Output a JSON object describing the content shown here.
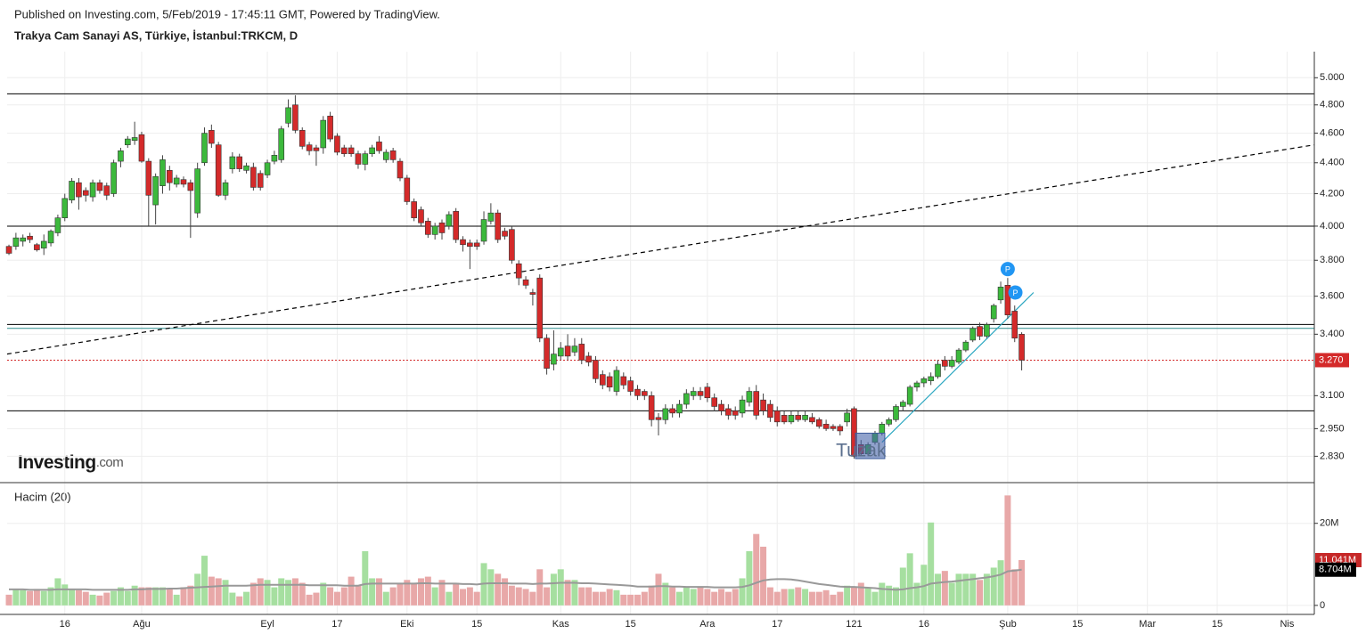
{
  "header": {
    "published": "Published on Investing.com, 5/Feb/2019 - 17:45:11 GMT, Powered by TradingView."
  },
  "logo": {
    "main": "Investing",
    "suffix": ".com"
  },
  "chart_data": [
    {
      "type": "candlestick",
      "title": "Trakya Cam Sanayi AS, Türkiye, İstanbul:TRKCM, D",
      "log_scale": true,
      "grid": true,
      "up_color": "#3cb93c",
      "down_color": "#d42a2a",
      "xlim": [
        -0.26,
        186.9
      ],
      "ylim": [
        2.72,
        5.2
      ],
      "yticks": [
        {
          "value": 2.83,
          "label": "2.830"
        },
        {
          "value": 2.95,
          "label": "2.950"
        },
        {
          "value": 3.1,
          "label": "3.100"
        },
        {
          "value": 3.4,
          "label": "3.400"
        },
        {
          "value": 3.6,
          "label": "3.600"
        },
        {
          "value": 3.8,
          "label": "3.800"
        },
        {
          "value": 4,
          "label": "4.000"
        },
        {
          "value": 4.2,
          "label": "4.200"
        },
        {
          "value": 4.4,
          "label": "4.400"
        },
        {
          "value": 4.6,
          "label": "4.600"
        },
        {
          "value": 4.8,
          "label": "4.800"
        },
        {
          "value": 5,
          "label": "5.000"
        }
      ],
      "last_price": {
        "value": 3.27,
        "label": "3.270",
        "color": "#d42a2a"
      },
      "open": [
        3.88,
        3.88,
        3.91,
        3.94,
        3.89,
        3.87,
        3.9,
        3.96,
        4.05,
        4.16,
        4.27,
        4.22,
        4.18,
        4.27,
        4.25,
        4.2,
        4.41,
        4.52,
        4.55,
        4.59,
        4.41,
        4.13,
        4.25,
        4.35,
        4.26,
        4.29,
        4.27,
        4.08,
        4.4,
        4.62,
        4.52,
        4.19,
        4.36,
        4.44,
        4.35,
        4.37,
        4.33,
        4.32,
        4.41,
        4.42,
        4.67,
        4.8,
        4.62,
        4.52,
        4.5,
        4.5,
        4.72,
        4.58,
        4.5,
        4.5,
        4.46,
        4.39,
        4.46,
        4.54,
        4.42,
        4.48,
        4.41,
        4.3,
        4.15,
        4.1,
        4.03,
        3.95,
        4.02,
        4.0,
        4.09,
        3.92,
        3.9,
        3.9,
        3.91,
        4.03,
        4.08,
        3.97,
        3.98,
        3.78,
        3.69,
        3.62,
        3.7,
        3.38,
        3.25,
        3.29,
        3.34,
        3.31,
        3.35,
        3.29,
        3.27,
        3.2,
        3.19,
        3.12,
        3.19,
        3.17,
        3.13,
        3.12,
        3.1,
        3.0,
        2.99,
        3.04,
        3.02,
        3.06,
        3.1,
        3.12,
        3.14,
        3.09,
        3.06,
        3.04,
        3.03,
        3.02,
        3.07,
        3.12,
        3.08,
        3.06,
        3.03,
        3.01,
        2.98,
        3.01,
        2.99,
        3.0,
        2.99,
        2.97,
        2.96,
        2.96,
        2.98,
        3.04,
        2.88,
        2.84,
        2.89,
        2.93,
        2.97,
        2.99,
        3.05,
        3.06,
        3.14,
        3.16,
        3.17,
        3.19,
        3.27,
        3.24,
        3.26,
        3.32,
        3.37,
        3.44,
        3.39,
        3.48,
        3.58,
        3.66,
        3.52,
        3.4
      ],
      "high": [
        3.89,
        3.96,
        3.95,
        3.96,
        3.9,
        3.95,
        3.98,
        4.07,
        4.2,
        4.3,
        4.3,
        4.24,
        4.29,
        4.29,
        4.27,
        4.42,
        4.5,
        4.58,
        4.68,
        4.61,
        4.43,
        4.33,
        4.45,
        4.38,
        4.32,
        4.31,
        4.29,
        4.4,
        4.64,
        4.66,
        4.54,
        4.29,
        4.47,
        4.46,
        4.4,
        4.4,
        4.35,
        4.42,
        4.48,
        4.65,
        4.84,
        4.87,
        4.64,
        4.54,
        4.52,
        4.72,
        4.75,
        4.6,
        4.52,
        4.52,
        4.48,
        4.48,
        4.52,
        4.58,
        4.49,
        4.5,
        4.43,
        4.32,
        4.17,
        4.12,
        4.05,
        4.02,
        4.04,
        4.09,
        4.11,
        3.94,
        3.92,
        3.92,
        4.09,
        4.14,
        4.1,
        3.99,
        4.0,
        3.8,
        3.71,
        3.64,
        3.72,
        3.4,
        3.42,
        3.36,
        3.4,
        3.38,
        3.38,
        3.31,
        3.29,
        3.22,
        3.21,
        3.24,
        3.21,
        3.19,
        3.15,
        3.13,
        3.12,
        3.02,
        3.06,
        3.06,
        3.08,
        3.13,
        3.14,
        3.14,
        3.16,
        3.11,
        3.08,
        3.06,
        3.05,
        3.1,
        3.14,
        3.15,
        3.11,
        3.08,
        3.05,
        3.03,
        3.03,
        3.03,
        3.03,
        3.02,
        3.0,
        2.99,
        2.97,
        2.97,
        3.04,
        3.05,
        2.9,
        2.89,
        2.94,
        2.98,
        3.0,
        3.06,
        3.08,
        3.15,
        3.17,
        3.19,
        3.21,
        3.27,
        3.29,
        3.29,
        3.33,
        3.37,
        3.44,
        3.46,
        3.46,
        3.56,
        3.68,
        3.7,
        3.55,
        3.41
      ],
      "low": [
        3.83,
        3.86,
        3.88,
        3.9,
        3.85,
        3.83,
        3.88,
        3.94,
        4.03,
        4.14,
        4.1,
        4.15,
        4.15,
        4.2,
        4.16,
        4.18,
        4.37,
        4.5,
        4.52,
        4.4,
        4.0,
        4.01,
        4.2,
        4.22,
        4.24,
        4.24,
        3.93,
        4.05,
        4.38,
        4.5,
        4.18,
        4.16,
        4.33,
        4.34,
        4.33,
        4.22,
        4.22,
        4.3,
        4.39,
        4.4,
        4.64,
        4.6,
        4.49,
        4.45,
        4.38,
        4.46,
        4.54,
        4.45,
        4.44,
        4.44,
        4.36,
        4.35,
        4.44,
        4.46,
        4.4,
        4.4,
        4.28,
        4.13,
        4.03,
        4.0,
        3.93,
        3.92,
        3.92,
        3.98,
        3.9,
        3.85,
        3.75,
        3.86,
        3.89,
        4.01,
        3.9,
        3.92,
        3.78,
        3.66,
        3.64,
        3.55,
        3.36,
        3.2,
        3.22,
        3.27,
        3.27,
        3.29,
        3.25,
        3.24,
        3.16,
        3.13,
        3.12,
        3.1,
        3.13,
        3.1,
        3.08,
        3.08,
        2.96,
        2.92,
        2.97,
        3.0,
        3.0,
        3.04,
        3.08,
        3.08,
        3.07,
        3.03,
        3.01,
        2.99,
        2.99,
        3.0,
        3.05,
        2.99,
        3.01,
        2.98,
        2.96,
        2.97,
        2.97,
        2.98,
        2.98,
        2.97,
        2.95,
        2.94,
        2.94,
        2.92,
        2.96,
        2.82,
        2.83,
        2.83,
        2.88,
        2.92,
        2.96,
        2.98,
        3.03,
        3.05,
        3.12,
        3.14,
        3.15,
        3.18,
        3.22,
        3.23,
        3.25,
        3.31,
        3.36,
        3.37,
        3.38,
        3.46,
        3.56,
        3.48,
        3.36,
        3.22
      ],
      "close": [
        3.84,
        3.93,
        3.93,
        3.92,
        3.86,
        3.91,
        3.97,
        4.05,
        4.17,
        4.28,
        4.18,
        4.19,
        4.27,
        4.22,
        4.19,
        4.4,
        4.48,
        4.56,
        4.57,
        4.41,
        4.19,
        4.31,
        4.42,
        4.27,
        4.3,
        4.26,
        4.22,
        4.36,
        4.6,
        4.53,
        4.19,
        4.27,
        4.44,
        4.36,
        4.38,
        4.24,
        4.24,
        4.4,
        4.45,
        4.63,
        4.78,
        4.62,
        4.51,
        4.48,
        4.48,
        4.69,
        4.56,
        4.47,
        4.46,
        4.46,
        4.39,
        4.46,
        4.5,
        4.48,
        4.47,
        4.42,
        4.3,
        4.15,
        4.05,
        4.02,
        3.95,
        4.0,
        3.96,
        4.07,
        3.92,
        3.89,
        3.88,
        3.88,
        4.04,
        4.08,
        3.92,
        3.94,
        3.8,
        3.7,
        3.66,
        3.61,
        3.38,
        3.23,
        3.3,
        3.33,
        3.29,
        3.34,
        3.27,
        3.26,
        3.18,
        3.15,
        3.14,
        3.22,
        3.15,
        3.12,
        3.1,
        3.1,
        2.99,
        2.99,
        3.04,
        3.02,
        3.06,
        3.11,
        3.12,
        3.1,
        3.09,
        3.05,
        3.03,
        3.01,
        3.01,
        3.08,
        3.12,
        3.01,
        3.03,
        3.0,
        2.98,
        2.98,
        3.01,
        2.99,
        3.01,
        2.98,
        2.96,
        2.95,
        2.95,
        2.94,
        3.02,
        2.83,
        2.84,
        2.88,
        2.93,
        2.97,
        2.99,
        3.05,
        3.07,
        3.14,
        3.16,
        3.18,
        3.19,
        3.25,
        3.24,
        3.27,
        3.32,
        3.36,
        3.43,
        3.39,
        3.45,
        3.55,
        3.65,
        3.5,
        3.38,
        3.27
      ],
      "levels": [
        {
          "value": 4.88,
          "color": "#000000"
        },
        {
          "value": 4.0,
          "color": "#000000"
        },
        {
          "value": 3.45,
          "color": "#000000"
        },
        {
          "value": 3.43,
          "color": "#2a8c8c"
        },
        {
          "value": 3.03,
          "color": "#000000"
        }
      ],
      "trendlines": [
        {
          "points": [
            [
              -0.26,
              3.3
            ],
            [
              186.9,
              4.52
            ]
          ],
          "color": "#000000",
          "style": "dashed"
        },
        {
          "points": [
            [
              125,
              2.89
            ],
            [
              146.7,
              3.62
            ]
          ],
          "color": "#2aa6c0",
          "style": "solid"
        }
      ],
      "note": {
        "text": "Tuzak",
        "x": 118.4,
        "y": 2.85,
        "box": [
          [
            121.2,
            2.93
          ],
          [
            125.4,
            2.82
          ]
        ]
      },
      "markers": [
        {
          "text": "P",
          "x": 143,
          "y": 3.75
        },
        {
          "text": "P",
          "x": 144.1,
          "y": 3.62
        }
      ]
    },
    {
      "type": "bar",
      "title": "Hacim (20)",
      "grid": true,
      "up_color": "#a6dfa0",
      "down_color": "#e8a8a8",
      "ma_color": "#999999",
      "xlim": [
        -0.26,
        186.9
      ],
      "ylim": [
        -2.2,
        29.7
      ],
      "yticks": [
        0,
        {
          "value": 20,
          "label": "20M"
        }
      ],
      "xticks": [
        {
          "value": 8,
          "label": "16"
        },
        {
          "value": 19,
          "label": "Ağu"
        },
        {
          "value": 37,
          "label": "Eyl"
        },
        {
          "value": 47,
          "label": "17"
        },
        {
          "value": 57,
          "label": "Eki"
        },
        {
          "value": 67,
          "label": "15"
        },
        {
          "value": 79,
          "label": "Kas"
        },
        {
          "value": 89,
          "label": "15"
        },
        {
          "value": 100,
          "label": "Ara"
        },
        {
          "value": 110,
          "label": "17"
        },
        121,
        {
          "value": 131,
          "label": "16"
        },
        {
          "value": 143,
          "label": "Şub"
        },
        {
          "value": 153,
          "label": "15"
        },
        {
          "value": 163,
          "label": "Mar"
        },
        {
          "value": 173,
          "label": "15"
        },
        {
          "value": 183,
          "label": "Nis"
        }
      ],
      "values": [
        2.6,
        4.0,
        3.7,
        3.5,
        4.0,
        3.5,
        4.4,
        6.6,
        5.1,
        4.0,
        3.7,
        3.3,
        2.6,
        2.4,
        3.1,
        3.5,
        4.4,
        3.5,
        4.8,
        4.4,
        4.4,
        4.4,
        4.4,
        4.0,
        2.6,
        4.4,
        4.8,
        7.7,
        12.1,
        7.0,
        6.6,
        6.2,
        3.1,
        2.2,
        3.3,
        5.5,
        6.6,
        6.2,
        4.4,
        6.6,
        6.2,
        6.6,
        5.5,
        2.6,
        3.1,
        5.5,
        4.4,
        3.3,
        4.4,
        7.0,
        4.8,
        13.2,
        6.6,
        6.6,
        3.3,
        4.4,
        5.5,
        6.2,
        5.5,
        6.6,
        7.0,
        4.4,
        6.2,
        3.3,
        5.5,
        4.0,
        4.4,
        3.3,
        10.3,
        8.8,
        7.7,
        6.6,
        4.8,
        4.4,
        4.0,
        3.3,
        8.8,
        4.4,
        7.7,
        8.8,
        6.2,
        6.2,
        4.4,
        4.4,
        3.3,
        3.3,
        4.0,
        3.7,
        2.6,
        2.6,
        2.6,
        3.3,
        4.8,
        7.7,
        5.5,
        4.4,
        3.3,
        4.4,
        4.0,
        4.4,
        4.0,
        3.3,
        4.0,
        3.3,
        4.0,
        6.6,
        13.2,
        17.4,
        14.3,
        4.4,
        3.3,
        4.0,
        4.0,
        4.4,
        4.0,
        3.3,
        3.3,
        3.7,
        2.6,
        3.3,
        4.8,
        4.4,
        5.5,
        4.4,
        3.3,
        5.5,
        4.8,
        4.4,
        9.2,
        12.7,
        5.5,
        9.9,
        20.2,
        7.7,
        8.4,
        5.5,
        7.7,
        7.7,
        7.7,
        6.2,
        7.7,
        9.2,
        11.0,
        26.8,
        8.8,
        11.041
      ],
      "ma": [
        3.9,
        3.9,
        3.9,
        3.8,
        3.8,
        3.8,
        3.8,
        3.9,
        3.9,
        3.9,
        3.9,
        3.9,
        3.8,
        3.8,
        3.8,
        3.8,
        3.8,
        3.8,
        3.9,
        3.9,
        4.0,
        4.0,
        4.0,
        4.1,
        4.1,
        4.2,
        4.3,
        4.4,
        4.5,
        4.6,
        4.7,
        4.8,
        4.8,
        4.8,
        4.8,
        4.9,
        5.0,
        5.0,
        5.0,
        5.0,
        5.0,
        5.0,
        5.0,
        4.9,
        4.9,
        4.9,
        4.9,
        4.9,
        4.8,
        4.8,
        4.8,
        5.2,
        5.3,
        5.3,
        5.3,
        5.3,
        5.3,
        5.3,
        5.3,
        5.4,
        5.4,
        5.3,
        5.3,
        5.3,
        5.3,
        5.2,
        5.2,
        5.1,
        5.3,
        5.4,
        5.4,
        5.4,
        5.3,
        5.3,
        5.3,
        5.2,
        5.3,
        5.3,
        5.4,
        5.5,
        5.5,
        5.5,
        5.4,
        5.4,
        5.3,
        5.2,
        5.1,
        5.0,
        4.9,
        4.8,
        4.6,
        4.6,
        4.6,
        4.7,
        4.7,
        4.6,
        4.6,
        4.5,
        4.5,
        4.5,
        4.5,
        4.4,
        4.4,
        4.4,
        4.4,
        4.5,
        4.9,
        5.5,
        6.1,
        6.3,
        6.4,
        6.4,
        6.3,
        6.1,
        5.8,
        5.5,
        5.2,
        5.0,
        4.8,
        4.6,
        4.5,
        4.5,
        4.4,
        4.3,
        4.2,
        4.0,
        3.9,
        3.8,
        3.9,
        4.2,
        4.4,
        4.7,
        5.3,
        5.5,
        5.7,
        5.8,
        6.0,
        6.2,
        6.4,
        6.6,
        6.8,
        7.1,
        7.5,
        8.3,
        8.5,
        8.704
      ],
      "last_value_label": "11.041M",
      "ma_last_label": "8.704M"
    }
  ]
}
